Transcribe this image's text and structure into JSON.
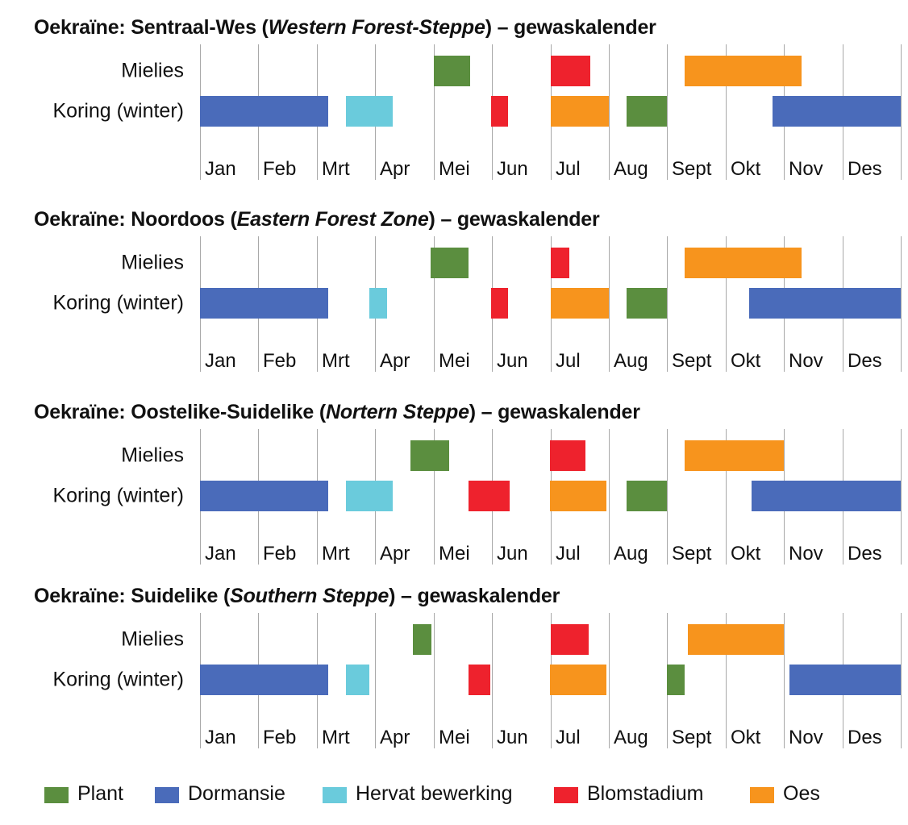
{
  "colors": {
    "plant": "#5b8e3f",
    "dormancy": "#4a6bba",
    "regrowth": "#6acbdc",
    "flowering": "#ee222d",
    "harvest": "#f7941d"
  },
  "chart_data": [
    {
      "type": "gantt",
      "title": {
        "pre": "Oekraïne: Sentraal-Wes (",
        "italic": "Western Forest-Steppe",
        "post": ") – gewaskalender"
      },
      "months": [
        "Jan",
        "Feb",
        "Mrt",
        "Apr",
        "Mei",
        "Jun",
        "Jul",
        "Aug",
        "Sept",
        "Okt",
        "Nov",
        "Des"
      ],
      "rows": [
        {
          "label": "Mielies",
          "segments": [
            {
              "stage": "plant",
              "start": 4.0,
              "end": 4.63
            },
            {
              "stage": "flowering",
              "start": 6.0,
              "end": 6.68
            },
            {
              "stage": "harvest",
              "start": 8.3,
              "end": 10.3
            }
          ]
        },
        {
          "label": "Koring (winter)",
          "segments": [
            {
              "stage": "dormancy",
              "start": 0.0,
              "end": 2.2
            },
            {
              "stage": "regrowth",
              "start": 2.5,
              "end": 3.3
            },
            {
              "stage": "flowering",
              "start": 4.99,
              "end": 5.28
            },
            {
              "stage": "harvest",
              "start": 6.0,
              "end": 7.0
            },
            {
              "stage": "plant",
              "start": 7.3,
              "end": 8.0
            },
            {
              "stage": "dormancy",
              "start": 9.8,
              "end": 12.0
            }
          ]
        }
      ]
    },
    {
      "type": "gantt",
      "title": {
        "pre": "Oekraïne: Noordoos (",
        "italic": "Eastern Forest Zone",
        "post": ") – gewaskalender"
      },
      "months": [
        "Jan",
        "Feb",
        "Mrt",
        "Apr",
        "Mei",
        "Jun",
        "Jul",
        "Aug",
        "Sept",
        "Okt",
        "Nov",
        "Des"
      ],
      "rows": [
        {
          "label": "Mielies",
          "segments": [
            {
              "stage": "plant",
              "start": 3.95,
              "end": 4.6
            },
            {
              "stage": "flowering",
              "start": 6.0,
              "end": 6.33
            },
            {
              "stage": "harvest",
              "start": 8.3,
              "end": 10.3
            }
          ]
        },
        {
          "label": "Koring (winter)",
          "segments": [
            {
              "stage": "dormancy",
              "start": 0.0,
              "end": 2.2
            },
            {
              "stage": "regrowth",
              "start": 2.9,
              "end": 3.2
            },
            {
              "stage": "flowering",
              "start": 4.99,
              "end": 5.28
            },
            {
              "stage": "harvest",
              "start": 6.0,
              "end": 7.0
            },
            {
              "stage": "plant",
              "start": 7.3,
              "end": 8.0
            },
            {
              "stage": "dormancy",
              "start": 9.4,
              "end": 12.0
            }
          ]
        }
      ]
    },
    {
      "type": "gantt",
      "title": {
        "pre": "Oekraïne: Oostelike-Suidelike (",
        "italic": "Nortern Steppe",
        "post": ") – gewaskalender"
      },
      "months": [
        "Jan",
        "Feb",
        "Mrt",
        "Apr",
        "Mei",
        "Jun",
        "Jul",
        "Aug",
        "Sept",
        "Okt",
        "Nov",
        "Des"
      ],
      "rows": [
        {
          "label": "Mielies",
          "segments": [
            {
              "stage": "plant",
              "start": 3.6,
              "end": 4.27
            },
            {
              "stage": "flowering",
              "start": 5.99,
              "end": 6.6
            },
            {
              "stage": "harvest",
              "start": 8.3,
              "end": 10.0
            }
          ]
        },
        {
          "label": "Koring (winter)",
          "segments": [
            {
              "stage": "dormancy",
              "start": 0.0,
              "end": 2.2
            },
            {
              "stage": "regrowth",
              "start": 2.5,
              "end": 3.3
            },
            {
              "stage": "flowering",
              "start": 4.6,
              "end": 5.3
            },
            {
              "stage": "harvest",
              "start": 5.99,
              "end": 6.96
            },
            {
              "stage": "plant",
              "start": 7.3,
              "end": 8.0
            },
            {
              "stage": "dormancy",
              "start": 9.45,
              "end": 12.0
            }
          ]
        }
      ]
    },
    {
      "type": "gantt",
      "title": {
        "pre": "Oekraïne: Suidelike (",
        "italic": "Southern Steppe",
        "post": ") – gewaskalender"
      },
      "months": [
        "Jan",
        "Feb",
        "Mrt",
        "Apr",
        "Mei",
        "Jun",
        "Jul",
        "Aug",
        "Sept",
        "Okt",
        "Nov",
        "Des"
      ],
      "rows": [
        {
          "label": "Mielies",
          "segments": [
            {
              "stage": "plant",
              "start": 3.65,
              "end": 3.97
            },
            {
              "stage": "flowering",
              "start": 6.0,
              "end": 6.65
            },
            {
              "stage": "harvest",
              "start": 8.35,
              "end": 10.0
            }
          ]
        },
        {
          "label": "Koring (winter)",
          "segments": [
            {
              "stage": "dormancy",
              "start": 0.0,
              "end": 2.2
            },
            {
              "stage": "regrowth",
              "start": 2.5,
              "end": 2.9
            },
            {
              "stage": "flowering",
              "start": 4.6,
              "end": 4.97
            },
            {
              "stage": "harvest",
              "start": 5.99,
              "end": 6.96
            },
            {
              "stage": "plant",
              "start": 7.99,
              "end": 8.3
            },
            {
              "stage": "dormancy",
              "start": 10.1,
              "end": 12.0
            }
          ]
        }
      ]
    }
  ],
  "legend": [
    {
      "stage": "plant",
      "label": "Plant"
    },
    {
      "stage": "dormancy",
      "label": "Dormansie"
    },
    {
      "stage": "regrowth",
      "label": "Hervat bewerking"
    },
    {
      "stage": "flowering",
      "label": "Blomstadium"
    },
    {
      "stage": "harvest",
      "label": "Oes"
    }
  ]
}
